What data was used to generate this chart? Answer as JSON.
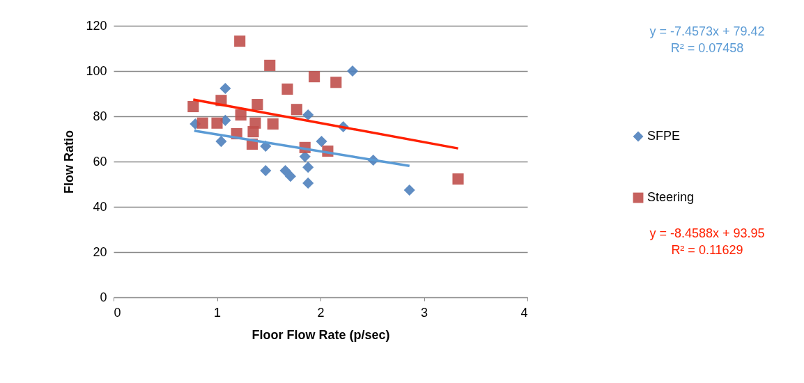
{
  "chart_data": {
    "type": "scatter",
    "xlabel": "Floor Flow Rate (p/sec)",
    "ylabel": "Flow Ratio",
    "xlim": [
      0,
      4
    ],
    "xticks": [
      0,
      1,
      2,
      3,
      4
    ],
    "ylim": [
      0,
      120
    ],
    "yticks": [
      0,
      20,
      40,
      60,
      80,
      100,
      120
    ],
    "grid": "y",
    "legend": "right",
    "series": [
      {
        "name": "SFPE",
        "color": "#4f81bd",
        "marker": "diamond",
        "x": [
          0.79,
          1.08,
          1.08,
          1.04,
          1.47,
          1.47,
          1.66,
          1.71,
          1.88,
          1.85,
          1.88,
          1.88,
          2.01,
          2.22,
          2.31,
          2.51,
          2.86
        ],
        "values": [
          76.6,
          92.3,
          78.2,
          68.9,
          66.8,
          56.0,
          56.0,
          53.5,
          80.6,
          62.2,
          57.5,
          50.5,
          68.9,
          75.4,
          100,
          60.6,
          47.4
        ]
      },
      {
        "name": "Steering",
        "color": "#c0504d",
        "marker": "square",
        "x": [
          1.22,
          1.51,
          1.94,
          2.15,
          1.68,
          0.77,
          1.04,
          1.39,
          1.77,
          1.23,
          0.86,
          1.0,
          1.37,
          1.54,
          1.19,
          1.35,
          1.34,
          1.85,
          2.07,
          3.33
        ],
        "values": [
          113.2,
          102.5,
          97.5,
          95,
          92,
          84.3,
          87,
          85.2,
          83,
          80.6,
          77,
          77,
          77,
          76.6,
          72.3,
          73.2,
          67.7,
          66.2,
          64.6,
          52.3
        ]
      },
      {
        "type": "line",
        "color": "#5b9bd5",
        "x": [
          0.78,
          2.86
        ],
        "values": [
          73.6,
          58.1
        ]
      },
      {
        "type": "line",
        "color": "#ff2000",
        "x": [
          0.77,
          3.33
        ],
        "values": [
          87.4,
          65.8
        ]
      }
    ],
    "annotations": [
      "y = -7.4573x + 79.42\nR² = 0.07458",
      "y = -8.4588x + 93.95\nR² = 0.11629"
    ]
  }
}
